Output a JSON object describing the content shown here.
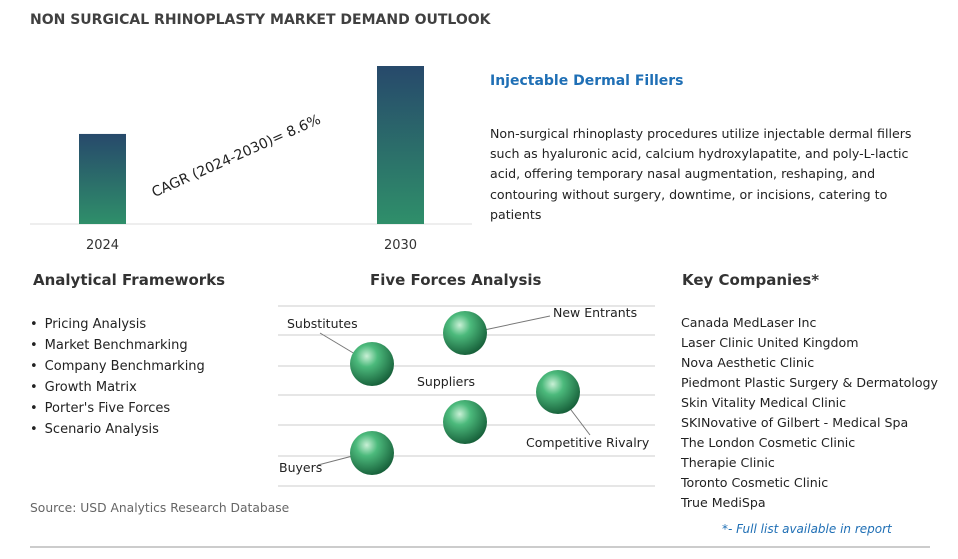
{
  "title": "NON SURGICAL RHINOPLASTY MARKET DEMAND OUTLOOK",
  "chart_data": {
    "type": "bar",
    "categories": [
      "2024",
      "2030"
    ],
    "values": [
      57,
      100
    ],
    "annotation": "CAGR (2024-2030)=  8.6%"
  },
  "segment": {
    "title": "Injectable Dermal Fillers",
    "description": "Non-surgical rhinoplasty procedures utilize injectable dermal fillers such as hyaluronic acid, calcium hydroxylapatite, and poly-L-lactic acid, offering temporary nasal augmentation, reshaping, and contouring without surgery, downtime, or incisions, catering to patients"
  },
  "frameworks": {
    "title": "Analytical Frameworks",
    "items": [
      "Pricing Analysis",
      "Market Benchmarking",
      "Company Benchmarking",
      "Growth Matrix",
      "Porter's Five Forces",
      "Scenario Analysis"
    ]
  },
  "five_forces": {
    "title": "Five Forces Analysis",
    "forces": [
      "Substitutes",
      "New Entrants",
      "Suppliers",
      "Competitive Rivalry",
      "Buyers"
    ]
  },
  "companies": {
    "title": "Key Companies*",
    "items": [
      "Canada MedLaser Inc",
      "Laser Clinic United Kingdom",
      "Nova Aesthetic Clinic",
      "Piedmont Plastic Surgery & Dermatology",
      "Skin Vitality Medical Clinic",
      "SKINovative of Gilbert - Medical Spa",
      "The London Cosmetic Clinic",
      "Therapie Clinic",
      "Toronto Cosmetic Clinic",
      "True MediSpa"
    ],
    "note": "*- Full list available in report"
  },
  "source": "Source: USD Analytics Research Database"
}
